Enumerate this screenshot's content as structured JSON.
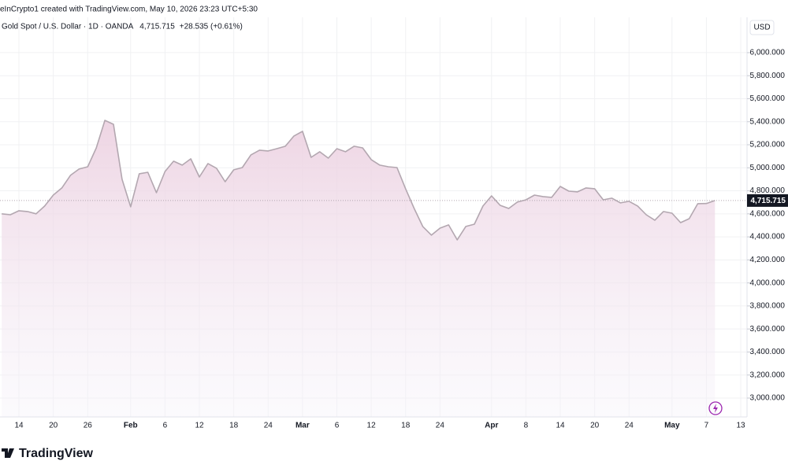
{
  "chart_data": {
    "type": "area",
    "attribution": "eInCrypto1 created with TradingView.com, May 10, 2026 23:23 UTC+5:30",
    "currency": "USD",
    "last_price": {
      "value": 4715.715,
      "label": "4,715.715"
    },
    "change": "+28.535 (+0.61%)",
    "brand": "TradingView",
    "categories": [
      null,
      null,
      "14",
      null,
      null,
      null,
      "20",
      null,
      null,
      null,
      "26",
      null,
      null,
      null,
      null,
      "Feb",
      null,
      null,
      null,
      "6",
      null,
      null,
      null,
      "12",
      null,
      null,
      null,
      "18",
      null,
      null,
      null,
      "24",
      null,
      null,
      null,
      "Mar",
      null,
      null,
      null,
      "6",
      null,
      null,
      null,
      "12",
      null,
      null,
      null,
      "18",
      null,
      null,
      null,
      "24",
      null,
      null,
      null,
      null,
      null,
      "Apr",
      null,
      null,
      null,
      "8",
      null,
      null,
      null,
      "14",
      null,
      null,
      null,
      "20",
      null,
      null,
      null,
      "24",
      null,
      null,
      null,
      null,
      "May",
      null,
      null,
      null,
      "7",
      null,
      null,
      null,
      "13"
    ],
    "series": [
      {
        "name": "Gold Spot / U.S. Dollar · 1D · OANDA",
        "color": "#b3a7b0",
        "values": [
          4600,
          4592,
          4627,
          4620,
          4600,
          4668,
          4763,
          4825,
          4934,
          4989,
          5009,
          5173,
          5412,
          5378,
          4900,
          4661,
          4948,
          4961,
          4784,
          4968,
          5057,
          5023,
          5078,
          4920,
          5037,
          4996,
          4879,
          4982,
          5002,
          5112,
          5153,
          5146,
          5166,
          5187,
          5276,
          5317,
          5091,
          5139,
          5084,
          5166,
          5139,
          5187,
          5173,
          5071,
          5023,
          5009,
          5002,
          4818,
          4647,
          4490,
          4415,
          4476,
          4504,
          4374,
          4490,
          4510,
          4668,
          4756,
          4674,
          4647,
          4702,
          4722,
          4763,
          4750,
          4743,
          4838,
          4797,
          4791,
          4825,
          4818,
          4722,
          4736,
          4695,
          4709,
          4668,
          4592,
          4545,
          4620,
          4606,
          4524,
          4558,
          4688,
          4690,
          4715.715,
          null,
          null,
          null
        ]
      }
    ],
    "ylim": [
      2836,
      6307
    ],
    "yticks": [
      {
        "value": 3000,
        "label": "3,000.000"
      },
      {
        "value": 3200,
        "label": "3,200.000"
      },
      {
        "value": 3400,
        "label": "3,400.000"
      },
      {
        "value": 3600,
        "label": "3,600.000"
      },
      {
        "value": 3800,
        "label": "3,800.000"
      },
      {
        "value": 4000,
        "label": "4,000.000"
      },
      {
        "value": 4200,
        "label": "4,200.000"
      },
      {
        "value": 4400,
        "label": "4,400.000"
      },
      {
        "value": 4600,
        "label": "4,600.000"
      },
      {
        "value": 4800,
        "label": "4,800.000"
      },
      {
        "value": 5000,
        "label": "5,000.000"
      },
      {
        "value": 5200,
        "label": "5,200.000"
      },
      {
        "value": 5400,
        "label": "5,400.000"
      },
      {
        "value": 5600,
        "label": "5,600.000"
      },
      {
        "value": 5800,
        "label": "5,800.000"
      },
      {
        "value": 6000,
        "label": "6,000.000"
      }
    ],
    "grid": true
  }
}
